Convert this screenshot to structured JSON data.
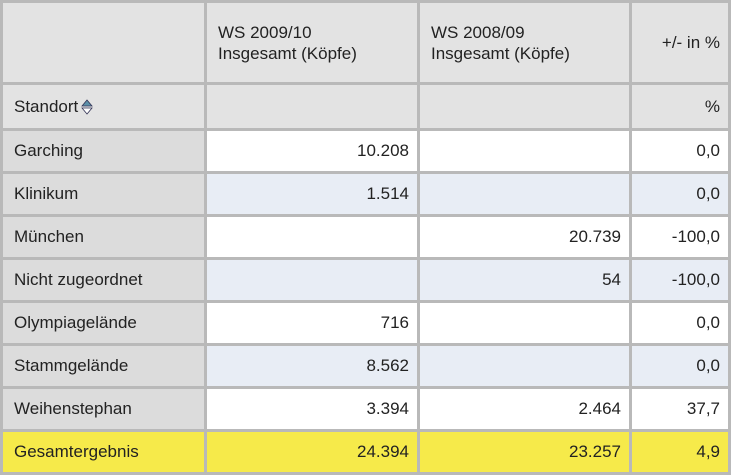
{
  "table": {
    "header": [
      null,
      "WS 2009/10\nInsgesamt (Köpfe)",
      "WS 2008/09\nInsgesamt (Köpfe)",
      "+/- in %"
    ],
    "subheader": [
      "Standort",
      null,
      null,
      "%"
    ],
    "rows": [
      [
        "Garching",
        "10.208",
        null,
        "0,0"
      ],
      [
        "Klinikum",
        "1.514",
        null,
        "0,0"
      ],
      [
        "München",
        null,
        "20.739",
        "-100,0"
      ],
      [
        "Nicht zugeordnet",
        null,
        "54",
        "-100,0"
      ],
      [
        "Olympiagelände",
        "716",
        null,
        "0,0"
      ],
      [
        "Stammgelände",
        "8.562",
        null,
        "0,0"
      ],
      [
        "Weihenstephan",
        "3.394",
        "2.464",
        "37,7"
      ]
    ],
    "total": [
      "Gesamtergebnis",
      "24.394",
      "23.257",
      "4,9"
    ]
  }
}
